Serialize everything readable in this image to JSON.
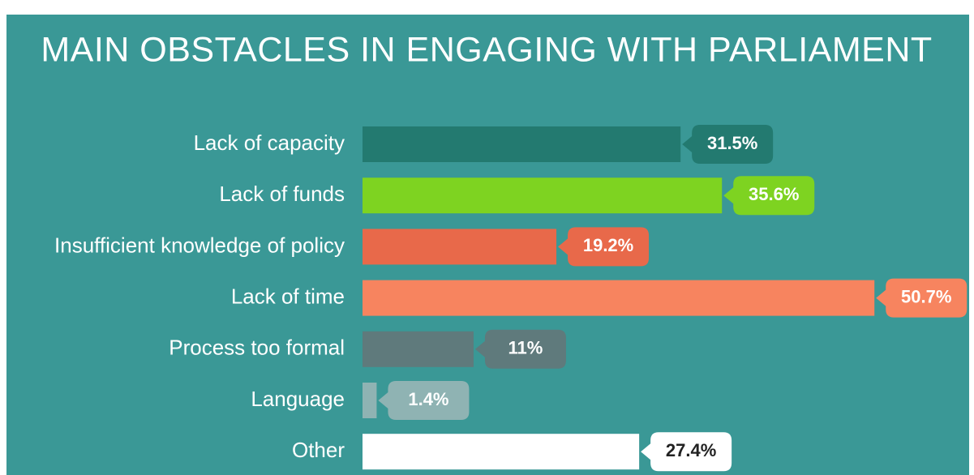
{
  "chart_data": {
    "type": "bar",
    "orientation": "horizontal",
    "title": "MAIN OBSTACLES IN ENGAGING WITH PARLIAMENT",
    "categories": [
      "Lack of capacity",
      "Lack of funds",
      "Insufficient knowledge of policy",
      "Lack of time",
      "Process too formal",
      "Language",
      "Other"
    ],
    "values": [
      31.5,
      35.6,
      19.2,
      50.7,
      11,
      1.4,
      27.4
    ],
    "value_labels": [
      "31.5%",
      "35.6%",
      "19.2%",
      "50.7%",
      "11%",
      "1.4%",
      "27.4%"
    ],
    "colors": [
      "#237a70",
      "#7ed321",
      "#e8694a",
      "#f7845f",
      "#5f7a7c",
      "#8fb3b3",
      "#ffffff"
    ]
  }
}
